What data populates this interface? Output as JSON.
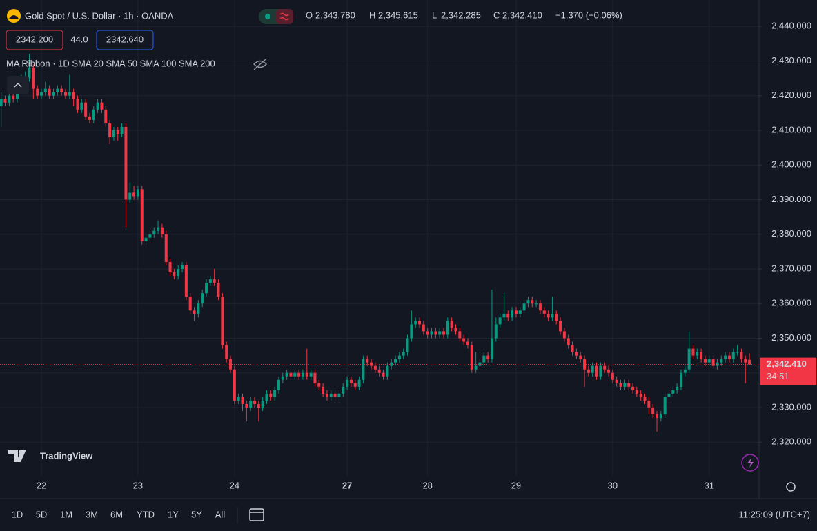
{
  "header": {
    "symbol": "Gold Spot / U.S. Dollar · 1h · OANDA",
    "ohlc": [
      {
        "key": "O",
        "value": "2,343.780"
      },
      {
        "key": "H",
        "value": "2,345.615"
      },
      {
        "key": "L",
        "value": "2,342.285"
      },
      {
        "key": "C",
        "value": "2,342.410"
      }
    ],
    "change": "−1.370 (−0.06%)",
    "sell": "2342.200",
    "spread": "44.0",
    "buy": "2342.640",
    "indicator": "MA Ribbon · 1D SMA 20 SMA 50 SMA 100 SMA 200"
  },
  "watermark": "TradingView",
  "toolbar": {
    "ranges": [
      "1D",
      "5D",
      "1M",
      "3M",
      "6M",
      "YTD",
      "1Y",
      "5Y",
      "All"
    ],
    "clock": "11:25:09 (UTC+7)"
  },
  "chart_data": {
    "type": "candlestick",
    "up_color": "#089981",
    "down_color": "#f23645",
    "grid": true,
    "ylim": [
      2310.3,
      2447.6
    ],
    "yticks": [
      {
        "value": 2320,
        "label": "2,320.000"
      },
      {
        "value": 2330,
        "label": "2,330.000"
      },
      {
        "value": 2340,
        "label": "2,340.000"
      },
      {
        "value": 2350,
        "label": "2,350.000"
      },
      {
        "value": 2360,
        "label": "2,360.000"
      },
      {
        "value": 2370,
        "label": "2,370.000"
      },
      {
        "value": 2380,
        "label": "2,380.000"
      },
      {
        "value": 2390,
        "label": "2,390.000"
      },
      {
        "value": 2400,
        "label": "2,400.000"
      },
      {
        "value": 2410,
        "label": "2,410.000"
      },
      {
        "value": 2420,
        "label": "2,420.000"
      },
      {
        "value": 2430,
        "label": "2,430.000"
      },
      {
        "value": 2440,
        "label": "2,440.000"
      }
    ],
    "last_price": {
      "value": 2342.41,
      "label": "2,342.410"
    },
    "countdown": "34:51",
    "categories": [
      null,
      null,
      null,
      null,
      null,
      null,
      null,
      null,
      null,
      null,
      "22",
      null,
      null,
      null,
      null,
      null,
      null,
      null,
      null,
      null,
      null,
      null,
      null,
      null,
      null,
      null,
      null,
      null,
      null,
      null,
      null,
      null,
      null,
      null,
      "23",
      null,
      null,
      null,
      null,
      null,
      null,
      null,
      null,
      null,
      null,
      null,
      null,
      null,
      null,
      null,
      null,
      null,
      null,
      null,
      null,
      null,
      null,
      null,
      "24",
      null,
      null,
      null,
      null,
      null,
      null,
      null,
      null,
      null,
      null,
      null,
      null,
      null,
      null,
      null,
      null,
      null,
      null,
      null,
      null,
      null,
      null,
      null,
      null,
      null,
      null,
      null,
      "27",
      null,
      null,
      null,
      null,
      null,
      null,
      null,
      null,
      null,
      null,
      null,
      null,
      null,
      null,
      null,
      null,
      null,
      null,
      null,
      "28",
      null,
      null,
      null,
      null,
      null,
      null,
      null,
      null,
      null,
      null,
      null,
      null,
      null,
      null,
      null,
      null,
      null,
      null,
      null,
      null,
      null,
      "29",
      null,
      null,
      null,
      null,
      null,
      null,
      null,
      null,
      null,
      null,
      null,
      null,
      null,
      null,
      null,
      null,
      null,
      null,
      null,
      null,
      null,
      null,
      null,
      "30",
      null,
      null,
      null,
      null,
      null,
      null,
      null,
      null,
      null,
      null,
      null,
      null,
      null,
      null,
      null,
      null,
      null,
      null,
      null,
      null,
      null,
      null,
      null,
      "31",
      null,
      null,
      null,
      null,
      null,
      null,
      null,
      null,
      null,
      null
    ],
    "ohlc": [
      [
        2417,
        2421,
        2411,
        2419
      ],
      [
        2419,
        2420,
        2417,
        2418
      ],
      [
        2418,
        2421,
        2417,
        2420
      ],
      [
        2420,
        2421,
        2418,
        2419
      ],
      [
        2419,
        2423,
        2418,
        2422
      ],
      [
        2422,
        2426,
        2421,
        2424
      ],
      [
        2424,
        2427,
        2423,
        2425
      ],
      [
        2425,
        2432,
        2424,
        2428
      ],
      [
        2428,
        2429,
        2419,
        2422
      ],
      [
        2422,
        2423,
        2419,
        2420
      ],
      [
        2420,
        2422,
        2419,
        2421
      ],
      [
        2421,
        2424,
        2420,
        2422
      ],
      [
        2422,
        2423,
        2419,
        2420
      ],
      [
        2420,
        2422,
        2419,
        2421
      ],
      [
        2421,
        2423,
        2420,
        2422
      ],
      [
        2422,
        2423,
        2420,
        2421
      ],
      [
        2421,
        2422,
        2419,
        2420
      ],
      [
        2420,
        2426,
        2419,
        2421
      ],
      [
        2421,
        2422,
        2417,
        2419
      ],
      [
        2419,
        2420,
        2415,
        2416
      ],
      [
        2416,
        2419,
        2415,
        2418
      ],
      [
        2418,
        2419,
        2413,
        2414
      ],
      [
        2414,
        2415,
        2412,
        2413
      ],
      [
        2413,
        2417,
        2412,
        2416
      ],
      [
        2416,
        2419,
        2415,
        2418
      ],
      [
        2418,
        2419,
        2415,
        2416
      ],
      [
        2416,
        2417,
        2411,
        2412
      ],
      [
        2412,
        2413,
        2406,
        2408
      ],
      [
        2408,
        2411,
        2407,
        2410
      ],
      [
        2410,
        2411,
        2407,
        2409
      ],
      [
        2409,
        2412,
        2408,
        2411
      ],
      [
        2411,
        2412,
        2382,
        2390
      ],
      [
        2390,
        2395,
        2389,
        2392
      ],
      [
        2392,
        2394,
        2390,
        2391
      ],
      [
        2391,
        2394,
        2390,
        2393
      ],
      [
        2393,
        2394,
        2377,
        2378
      ],
      [
        2378,
        2380,
        2377,
        2379
      ],
      [
        2379,
        2381,
        2378,
        2380
      ],
      [
        2380,
        2382,
        2379,
        2381
      ],
      [
        2381,
        2384,
        2380,
        2382
      ],
      [
        2382,
        2383,
        2379,
        2380
      ],
      [
        2380,
        2381,
        2371,
        2372
      ],
      [
        2372,
        2373,
        2368,
        2369
      ],
      [
        2369,
        2370,
        2367,
        2368
      ],
      [
        2368,
        2371,
        2367,
        2370
      ],
      [
        2370,
        2372,
        2369,
        2371
      ],
      [
        2371,
        2372,
        2361,
        2362
      ],
      [
        2362,
        2363,
        2357,
        2358
      ],
      [
        2358,
        2359,
        2355,
        2357
      ],
      [
        2357,
        2361,
        2356,
        2360
      ],
      [
        2360,
        2364,
        2359,
        2363
      ],
      [
        2363,
        2367,
        2362,
        2366
      ],
      [
        2366,
        2368,
        2365,
        2367
      ],
      [
        2367,
        2370,
        2365,
        2366
      ],
      [
        2366,
        2367,
        2361,
        2362
      ],
      [
        2362,
        2363,
        2347,
        2348
      ],
      [
        2348,
        2349,
        2343,
        2344
      ],
      [
        2344,
        2345,
        2340,
        2341
      ],
      [
        2341,
        2342,
        2331,
        2332
      ],
      [
        2332,
        2334,
        2331,
        2333
      ],
      [
        2333,
        2334,
        2329,
        2331
      ],
      [
        2331,
        2332,
        2326,
        2330
      ],
      [
        2330,
        2333,
        2329,
        2332
      ],
      [
        2332,
        2333,
        2330,
        2331
      ],
      [
        2331,
        2332,
        2326,
        2330
      ],
      [
        2330,
        2333,
        2329,
        2332
      ],
      [
        2332,
        2335,
        2331,
        2334
      ],
      [
        2334,
        2335,
        2332,
        2333
      ],
      [
        2333,
        2336,
        2332,
        2335
      ],
      [
        2335,
        2339,
        2334,
        2338
      ],
      [
        2338,
        2340,
        2337,
        2339
      ],
      [
        2339,
        2341,
        2338,
        2340
      ],
      [
        2340,
        2341,
        2338,
        2339
      ],
      [
        2339,
        2341,
        2338,
        2340
      ],
      [
        2340,
        2341,
        2338,
        2339
      ],
      [
        2339,
        2341,
        2338,
        2340
      ],
      [
        2340,
        2347,
        2338,
        2339
      ],
      [
        2339,
        2341,
        2338,
        2340
      ],
      [
        2340,
        2341,
        2336,
        2337
      ],
      [
        2337,
        2338,
        2335,
        2336
      ],
      [
        2336,
        2337,
        2333,
        2334
      ],
      [
        2334,
        2335,
        2332,
        2333
      ],
      [
        2333,
        2335,
        2332,
        2334
      ],
      [
        2334,
        2335,
        2332,
        2333
      ],
      [
        2333,
        2335,
        2332,
        2334
      ],
      [
        2334,
        2337,
        2333,
        2336
      ],
      [
        2336,
        2339,
        2335,
        2338
      ],
      [
        2338,
        2339,
        2336,
        2337
      ],
      [
        2337,
        2338,
        2335,
        2336
      ],
      [
        2336,
        2339,
        2335,
        2338
      ],
      [
        2338,
        2345,
        2337,
        2344
      ],
      [
        2344,
        2345,
        2342,
        2343
      ],
      [
        2343,
        2344,
        2341,
        2342
      ],
      [
        2342,
        2343,
        2340,
        2341
      ],
      [
        2341,
        2342,
        2339,
        2340
      ],
      [
        2340,
        2341,
        2338,
        2339
      ],
      [
        2339,
        2343,
        2338,
        2342
      ],
      [
        2342,
        2344,
        2341,
        2343
      ],
      [
        2343,
        2345,
        2342,
        2344
      ],
      [
        2344,
        2346,
        2343,
        2345
      ],
      [
        2345,
        2347,
        2344,
        2346
      ],
      [
        2346,
        2351,
        2345,
        2350
      ],
      [
        2350,
        2358,
        2349,
        2354
      ],
      [
        2354,
        2356,
        2353,
        2355
      ],
      [
        2355,
        2356,
        2353,
        2354
      ],
      [
        2354,
        2355,
        2351,
        2352
      ],
      [
        2352,
        2353,
        2350,
        2351
      ],
      [
        2351,
        2353,
        2350,
        2352
      ],
      [
        2352,
        2353,
        2350,
        2351
      ],
      [
        2351,
        2353,
        2350,
        2352
      ],
      [
        2352,
        2353,
        2350,
        2351
      ],
      [
        2351,
        2356,
        2350,
        2355
      ],
      [
        2355,
        2356,
        2352,
        2353
      ],
      [
        2353,
        2354,
        2351,
        2352
      ],
      [
        2352,
        2353,
        2349,
        2350
      ],
      [
        2350,
        2351,
        2348,
        2349
      ],
      [
        2349,
        2350,
        2347,
        2348
      ],
      [
        2348,
        2349,
        2340,
        2341
      ],
      [
        2341,
        2346,
        2340,
        2342
      ],
      [
        2342,
        2344,
        2341,
        2343
      ],
      [
        2343,
        2346,
        2342,
        2345
      ],
      [
        2345,
        2346,
        2343,
        2344
      ],
      [
        2344,
        2364,
        2343,
        2350
      ],
      [
        2350,
        2356,
        2349,
        2354
      ],
      [
        2354,
        2357,
        2353,
        2356
      ],
      [
        2356,
        2363,
        2355,
        2357
      ],
      [
        2357,
        2358,
        2355,
        2356
      ],
      [
        2356,
        2359,
        2355,
        2358
      ],
      [
        2358,
        2359,
        2356,
        2357
      ],
      [
        2357,
        2359,
        2356,
        2358
      ],
      [
        2358,
        2361,
        2357,
        2360
      ],
      [
        2360,
        2362,
        2359,
        2361
      ],
      [
        2361,
        2362,
        2359,
        2360
      ],
      [
        2360,
        2361,
        2359,
        2360
      ],
      [
        2360,
        2361,
        2357,
        2358
      ],
      [
        2358,
        2359,
        2356,
        2357
      ],
      [
        2357,
        2358,
        2355,
        2356
      ],
      [
        2356,
        2362,
        2355,
        2357
      ],
      [
        2357,
        2358,
        2354,
        2355
      ],
      [
        2355,
        2356,
        2351,
        2352
      ],
      [
        2352,
        2353,
        2349,
        2350
      ],
      [
        2350,
        2351,
        2347,
        2348
      ],
      [
        2348,
        2349,
        2345,
        2346
      ],
      [
        2346,
        2347,
        2344,
        2345
      ],
      [
        2345,
        2346,
        2343,
        2344
      ],
      [
        2344,
        2345,
        2336,
        2341
      ],
      [
        2341,
        2342,
        2339,
        2340
      ],
      [
        2340,
        2343,
        2339,
        2342
      ],
      [
        2342,
        2343,
        2338,
        2339
      ],
      [
        2339,
        2343,
        2338,
        2342
      ],
      [
        2342,
        2343,
        2340,
        2341
      ],
      [
        2341,
        2342,
        2339,
        2340
      ],
      [
        2340,
        2341,
        2337,
        2338
      ],
      [
        2338,
        2339,
        2336,
        2337
      ],
      [
        2337,
        2338,
        2335,
        2336
      ],
      [
        2336,
        2338,
        2335,
        2337
      ],
      [
        2337,
        2338,
        2335,
        2336
      ],
      [
        2336,
        2337,
        2334,
        2335
      ],
      [
        2335,
        2336,
        2333,
        2334
      ],
      [
        2334,
        2335,
        2332,
        2333
      ],
      [
        2333,
        2334,
        2331,
        2332
      ],
      [
        2332,
        2333,
        2328,
        2330
      ],
      [
        2330,
        2331,
        2327,
        2328
      ],
      [
        2328,
        2329,
        2323,
        2327
      ],
      [
        2327,
        2329,
        2326,
        2328
      ],
      [
        2328,
        2334,
        2327,
        2333
      ],
      [
        2333,
        2335,
        2332,
        2334
      ],
      [
        2334,
        2336,
        2333,
        2335
      ],
      [
        2335,
        2337,
        2334,
        2336
      ],
      [
        2336,
        2341,
        2335,
        2340
      ],
      [
        2340,
        2342,
        2339,
        2341
      ],
      [
        2341,
        2352,
        2340,
        2347
      ],
      [
        2347,
        2348,
        2344,
        2345
      ],
      [
        2345,
        2347,
        2344,
        2346
      ],
      [
        2346,
        2347,
        2343,
        2344
      ],
      [
        2344,
        2345,
        2342,
        2343
      ],
      [
        2343,
        2345,
        2342,
        2344
      ],
      [
        2344,
        2345,
        2341,
        2342
      ],
      [
        2342,
        2344,
        2341,
        2343
      ],
      [
        2343,
        2345,
        2342,
        2344
      ],
      [
        2344,
        2346,
        2343,
        2345
      ],
      [
        2345,
        2346,
        2343,
        2344
      ],
      [
        2344,
        2347,
        2343,
        2346
      ],
      [
        2346,
        2348,
        2345,
        2346
      ],
      [
        2346,
        2347,
        2343,
        2344
      ],
      [
        2344,
        2345,
        2337,
        2343
      ],
      [
        2343.78,
        2345.615,
        2342.285,
        2342.41
      ]
    ]
  }
}
